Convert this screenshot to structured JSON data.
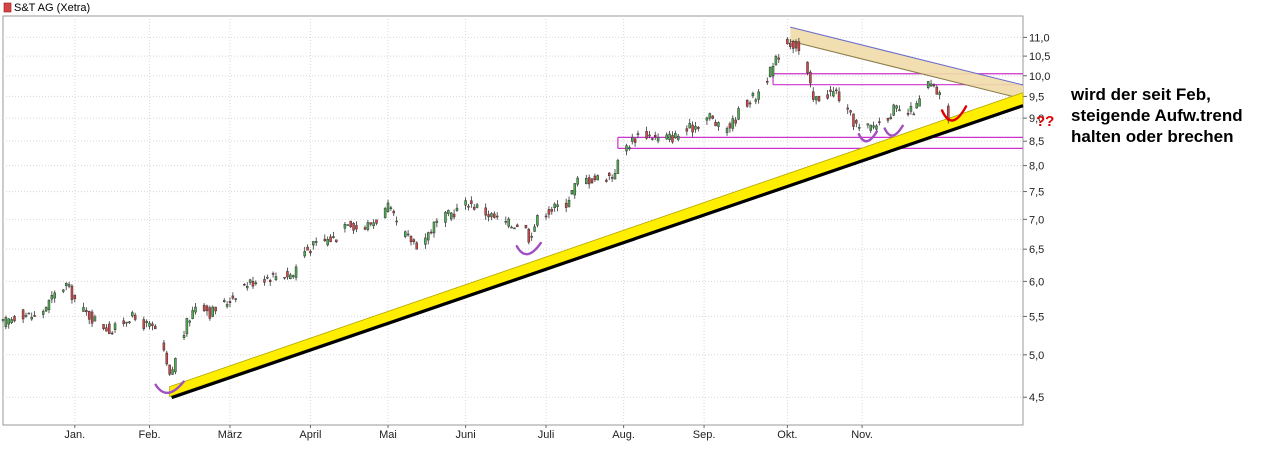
{
  "chart_data": {
    "type": "candlestick",
    "title": "S&T AG (Xetra)",
    "legend": {
      "label": "S&T AG (Xetra)",
      "color": "#d64545",
      "placement": "top-left"
    },
    "y_axis": {
      "scale": "log",
      "ylim": [
        4.2,
        11.6
      ],
      "ticks": [
        4.5,
        5.0,
        5.5,
        6.0,
        6.5,
        7.0,
        7.5,
        8.0,
        8.5,
        9.0,
        9.5,
        10.0,
        10.5,
        11.0
      ],
      "tick_labels": [
        "4,5",
        "5,0",
        "5,5",
        "6,0",
        "6,5",
        "7,0",
        "7,5",
        "8,0",
        "8,5",
        "9,0",
        "9,5",
        "10,0",
        "10,5",
        "11,0"
      ],
      "position": "right"
    },
    "x_axis": {
      "xlim": [
        0,
        355
      ],
      "months": [
        {
          "label": "Jan.",
          "pos": 25
        },
        {
          "label": "Feb.",
          "pos": 51
        },
        {
          "label": "März",
          "pos": 79
        },
        {
          "label": "April",
          "pos": 107
        },
        {
          "label": "Mai",
          "pos": 134
        },
        {
          "label": "Juni",
          "pos": 161
        },
        {
          "label": "Juli",
          "pos": 189
        },
        {
          "label": "Aug.",
          "pos": 216
        },
        {
          "label": "Sep.",
          "pos": 244
        },
        {
          "label": "Okt.",
          "pos": 273
        },
        {
          "label": "Nov.",
          "pos": 299
        }
      ]
    },
    "grid": true,
    "colors": {
      "up": "#4caf50",
      "down": "#d64545",
      "wick": "#333333"
    },
    "price_path": [
      [
        0,
        5.4
      ],
      [
        6,
        5.55
      ],
      [
        12,
        5.48
      ],
      [
        18,
        5.8
      ],
      [
        22,
        5.95
      ],
      [
        27,
        5.6
      ],
      [
        32,
        5.45
      ],
      [
        38,
        5.3
      ],
      [
        44,
        5.5
      ],
      [
        50,
        5.38
      ],
      [
        54,
        5.3
      ],
      [
        56,
        5.0
      ],
      [
        58,
        4.72
      ],
      [
        61,
        5.05
      ],
      [
        64,
        5.4
      ],
      [
        68,
        5.75
      ],
      [
        72,
        5.55
      ],
      [
        78,
        5.7
      ],
      [
        84,
        5.95
      ],
      [
        90,
        6.05
      ],
      [
        96,
        6.1
      ],
      [
        101,
        6.1
      ],
      [
        104,
        6.45
      ],
      [
        110,
        6.6
      ],
      [
        116,
        6.7
      ],
      [
        120,
        7.0
      ],
      [
        124,
        6.8
      ],
      [
        130,
        7.0
      ],
      [
        134,
        7.2
      ],
      [
        139,
        6.75
      ],
      [
        145,
        6.55
      ],
      [
        150,
        6.9
      ],
      [
        156,
        7.1
      ],
      [
        162,
        7.3
      ],
      [
        167,
        7.15
      ],
      [
        172,
        7.0
      ],
      [
        177,
        6.9
      ],
      [
        181,
        6.95
      ],
      [
        183,
        6.7
      ],
      [
        187,
        7.1
      ],
      [
        192,
        7.2
      ],
      [
        196,
        7.3
      ],
      [
        200,
        7.7
      ],
      [
        206,
        7.75
      ],
      [
        212,
        7.8
      ],
      [
        217,
        8.4
      ],
      [
        222,
        8.7
      ],
      [
        228,
        8.55
      ],
      [
        234,
        8.6
      ],
      [
        240,
        8.8
      ],
      [
        246,
        9.05
      ],
      [
        250,
        8.7
      ],
      [
        254,
        8.9
      ],
      [
        258,
        9.35
      ],
      [
        262,
        9.5
      ],
      [
        268,
        10.2
      ],
      [
        272,
        10.9
      ],
      [
        276,
        10.8
      ],
      [
        279,
        10.3
      ],
      [
        282,
        9.4
      ],
      [
        286,
        9.55
      ],
      [
        290,
        9.6
      ],
      [
        294,
        9.1
      ],
      [
        298,
        8.75
      ],
      [
        302,
        8.8
      ],
      [
        306,
        8.95
      ],
      [
        310,
        9.2
      ],
      [
        314,
        9.05
      ],
      [
        318,
        9.25
      ],
      [
        322,
        9.8
      ],
      [
        325,
        9.6
      ],
      [
        327,
        9.4
      ],
      [
        329,
        9.05
      ]
    ],
    "trendlines": [
      {
        "name": "support",
        "from": [
          58,
          4.62
        ],
        "to": [
          355,
          9.4
        ],
        "style": "yellow-band"
      },
      {
        "name": "resistance",
        "from": [
          274,
          11.2
        ],
        "to": [
          355,
          9.7
        ],
        "style": "tan-band"
      }
    ],
    "horizontal_lines": [
      {
        "y": 10.05,
        "from": 268,
        "to": 355,
        "color": "#cc33cc"
      },
      {
        "y": 9.78,
        "from": 268,
        "to": 355,
        "color": "#cc33cc"
      },
      {
        "y": 8.58,
        "from": 214,
        "to": 355,
        "color": "#cc33cc"
      },
      {
        "y": 8.35,
        "from": 214,
        "to": 355,
        "color": "#cc33cc"
      }
    ],
    "annotation": {
      "lines": [
        "wird der seit Feb,",
        "steigende Aufw.trend",
        "halten oder brechen"
      ],
      "question": "??"
    }
  }
}
